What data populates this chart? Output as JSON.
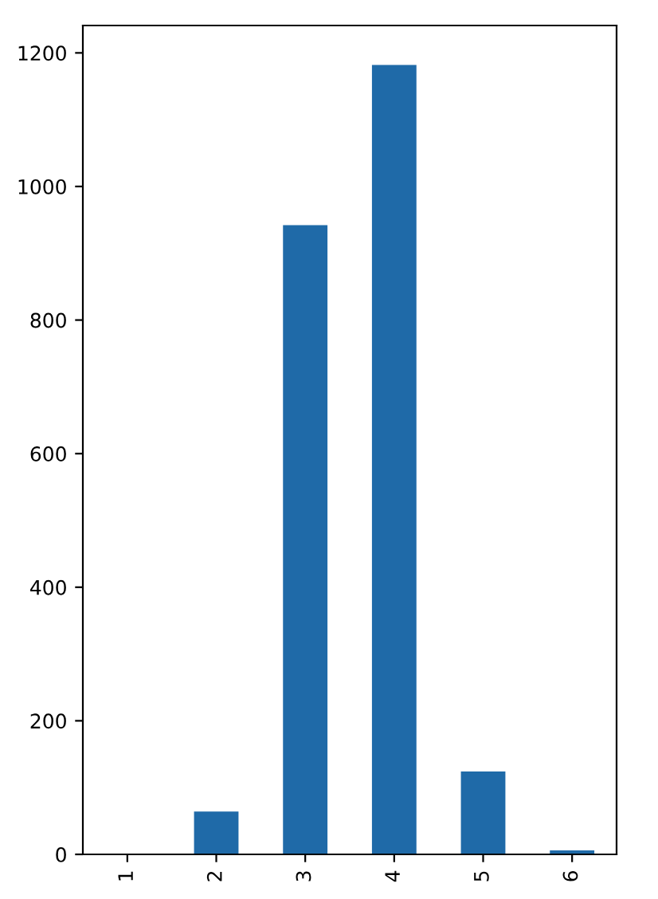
{
  "chart_data": {
    "type": "bar",
    "categories": [
      "1",
      "2",
      "3",
      "4",
      "5",
      "6"
    ],
    "values": [
      1,
      64,
      942,
      1182,
      124,
      6
    ],
    "color": "#1f6aa8",
    "ylim": [
      0,
      1241
    ],
    "yticks": [
      0,
      200,
      400,
      600,
      800,
      1000,
      1200
    ],
    "grid": false,
    "legend": false
  }
}
